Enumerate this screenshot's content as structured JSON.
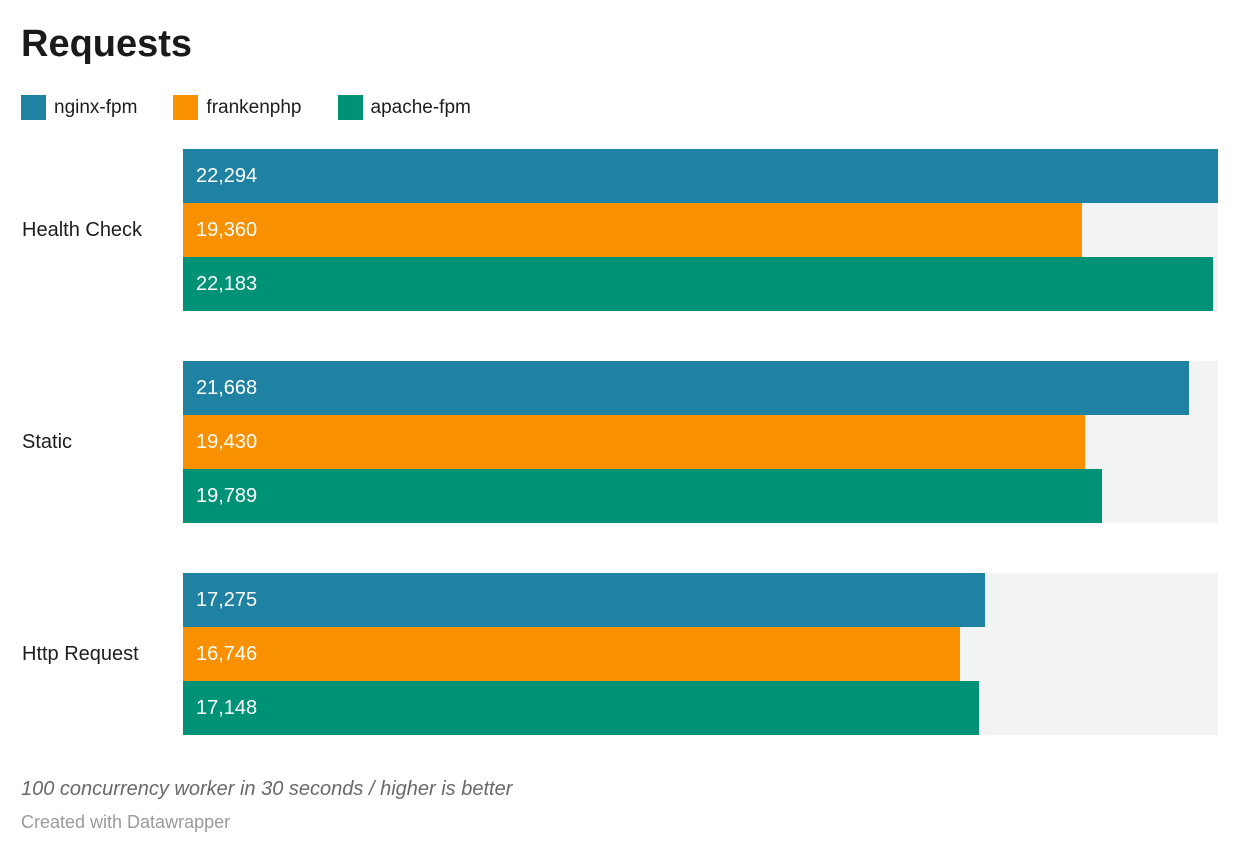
{
  "title": "Requests",
  "chart_data": {
    "type": "bar",
    "orientation": "horizontal",
    "title": "Requests",
    "xlabel": "",
    "ylabel": "",
    "xlim": [
      0,
      22294
    ],
    "grid": false,
    "legend_position": "top",
    "track_color": "#f2f3f3",
    "value_label_color": "#ffffff",
    "categories": [
      "Health Check",
      "Static",
      "Http Request"
    ],
    "series": [
      {
        "name": "nginx-fpm",
        "color": "#1f82a2",
        "values": [
          22294,
          21668,
          17275
        ],
        "labels": [
          "22,294",
          "21,668",
          "17,275"
        ]
      },
      {
        "name": "frankenphp",
        "color": "#f89000",
        "values": [
          19360,
          19430,
          16746
        ],
        "labels": [
          "19,360",
          "19,430",
          "16,746"
        ]
      },
      {
        "name": "apache-fpm",
        "color": "#009277",
        "values": [
          22183,
          19789,
          17148
        ],
        "labels": [
          "22,183",
          "19,789",
          "17,148"
        ]
      }
    ]
  },
  "footer": {
    "note": "100 concurrency worker in 30 seconds / higher is better",
    "attribution": "Created with Datawrapper"
  }
}
